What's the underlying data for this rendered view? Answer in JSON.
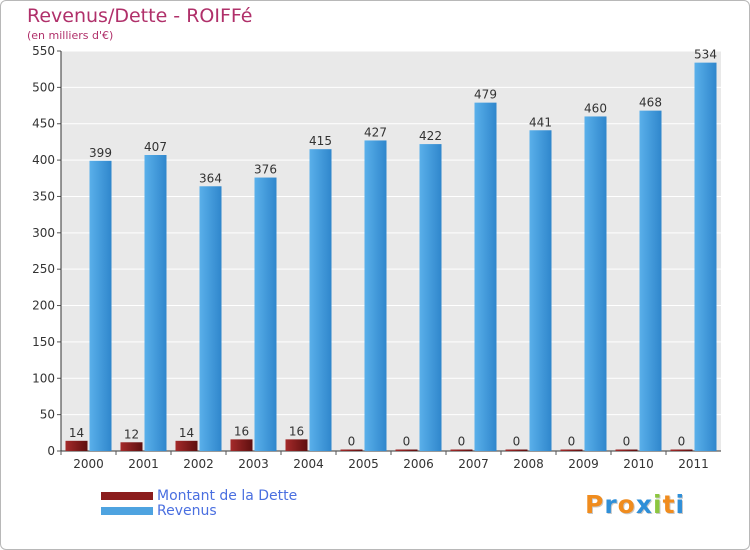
{
  "chart_data": {
    "type": "bar",
    "title": "Revenus/Dette - ROIFFé",
    "subtitle": "(en milliers d'€)",
    "categories": [
      "2000",
      "2001",
      "2002",
      "2003",
      "2004",
      "2005",
      "2006",
      "2007",
      "2008",
      "2009",
      "2010",
      "2011"
    ],
    "series": [
      {
        "name": "Montant de la Dette",
        "values": [
          14,
          12,
          14,
          16,
          16,
          0,
          0,
          0,
          0,
          0,
          0,
          0
        ],
        "color": "#8b1d1d"
      },
      {
        "name": "Revenus",
        "values": [
          399,
          407,
          364,
          376,
          415,
          427,
          422,
          479,
          441,
          460,
          468,
          534
        ],
        "color": "#4ea3e0"
      }
    ],
    "ylim": [
      0,
      550
    ],
    "yticks": [
      0,
      50,
      100,
      150,
      200,
      250,
      300,
      350,
      400,
      450,
      500,
      550
    ],
    "grid": true,
    "legend": "bottom-left"
  },
  "logo": {
    "letters": [
      "P",
      "r",
      "o",
      "x",
      "i",
      "t",
      "i"
    ],
    "colors": [
      "#f08c1e",
      "#2f8fd8",
      "#f08c1e",
      "#2f8fd8",
      "#8cc63f",
      "#f08c1e",
      "#2f8fd8"
    ]
  }
}
